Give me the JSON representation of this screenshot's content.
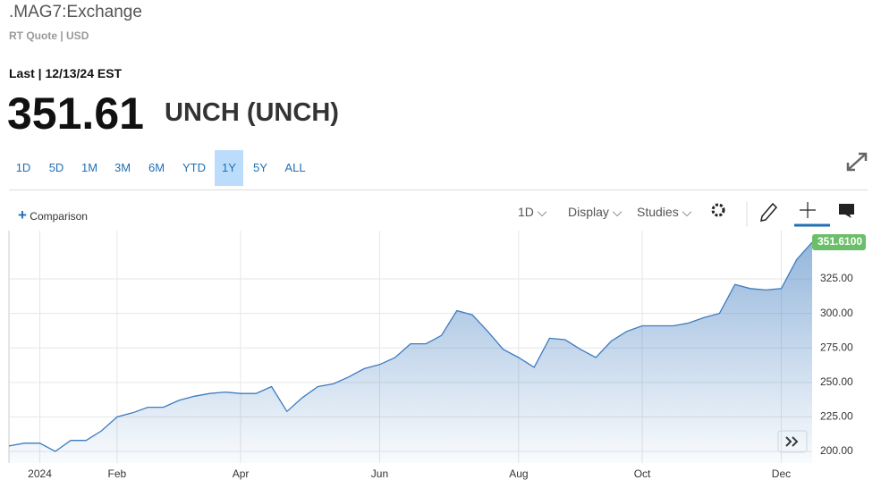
{
  "header": {
    "title": ".MAG7:Exchange",
    "subtitle": "RT Quote | USD",
    "last": "Last | 12/13/24 EST",
    "price": "351.61",
    "change": "UNCH (UNCH)"
  },
  "range_buttons": {
    "items": [
      "1D",
      "5D",
      "1M",
      "3M",
      "6M",
      "YTD",
      "1Y",
      "5Y",
      "ALL"
    ],
    "active": 6
  },
  "toolbar": {
    "comparison": "Comparison",
    "interval": "1D",
    "display": "Display",
    "studies": "Studies"
  },
  "chart_data": {
    "type": "area",
    "color": "#3d7bbf",
    "categories": [
      null,
      null,
      "2024",
      null,
      null,
      null,
      null,
      "Feb",
      null,
      null,
      null,
      null,
      null,
      null,
      null,
      "Apr",
      null,
      null,
      null,
      null,
      null,
      null,
      null,
      null,
      "Jun",
      null,
      null,
      null,
      null,
      null,
      null,
      null,
      null,
      "Aug",
      null,
      null,
      null,
      null,
      null,
      null,
      null,
      "Oct",
      null,
      null,
      null,
      null,
      null,
      null,
      null,
      null,
      "Dec",
      null,
      null
    ],
    "values": [
      204,
      206,
      206,
      200,
      208,
      208,
      215,
      225,
      228,
      232,
      232,
      237,
      240,
      242,
      243,
      242,
      242,
      247,
      229,
      239,
      247,
      249,
      254,
      260,
      263,
      268,
      278,
      278,
      284,
      302,
      299,
      287,
      274,
      268,
      261,
      282,
      281,
      274,
      268,
      280,
      287,
      291,
      291,
      291,
      293,
      297,
      300,
      321,
      318,
      317,
      318,
      339,
      351.61
    ],
    "last_label": "351.6100",
    "ylim": [
      191.6,
      360
    ],
    "yticks": [
      {
        "value": 200,
        "label": "200.00"
      },
      {
        "value": 225,
        "label": "225.00"
      },
      {
        "value": 250,
        "label": "250.00"
      },
      {
        "value": 275,
        "label": "275.00"
      },
      {
        "value": 300,
        "label": "300.00"
      },
      {
        "value": 325,
        "label": "325.00"
      }
    ],
    "grid": true
  }
}
